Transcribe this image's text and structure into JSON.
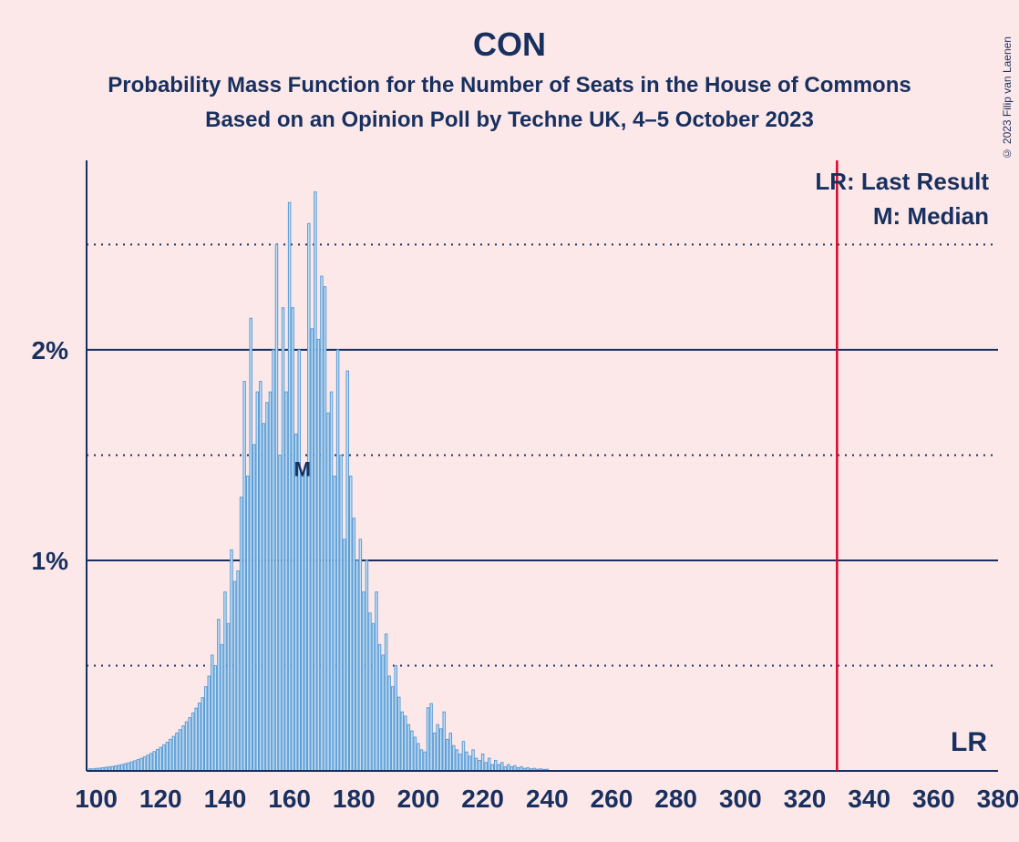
{
  "title": "CON",
  "subtitle1": "Probability Mass Function for the Number of Seats in the House of Commons",
  "subtitle2": "Based on an Opinion Poll by Techne UK, 4–5 October 2023",
  "copyright": "© 2023 Filip van Laenen",
  "legend": {
    "lr_full": "LR: Last Result",
    "m_full": "M: Median",
    "lr_short": "LR",
    "m_short": "M"
  },
  "chart": {
    "type": "bar-pmf",
    "background_color": "#fce8e8",
    "axis_color": "#18305f",
    "grid_major_color": "#18305f",
    "grid_minor_color": "#18305f",
    "bar_stroke_color": "#5a9bd5",
    "bar_fill_color": "#c5dff2",
    "lr_line_color": "#d90429",
    "text_color": "#18305f",
    "xlim": [
      97,
      380
    ],
    "ylim": [
      0,
      2.9
    ],
    "xtick_start": 100,
    "xtick_step": 20,
    "ytick_major": [
      1,
      2
    ],
    "ytick_minor": [
      0.5,
      1.5,
      2.5
    ],
    "y_label_suffix": "%",
    "last_result_x": 330,
    "median_x": 164,
    "axis_fontsize_y": 28,
    "axis_fontsize_x": 28,
    "legend_fontsize": 26,
    "label_m_fontsize": 22,
    "label_lr_fontsize": 30,
    "values": [
      {
        "x": 98,
        "y": 0.01
      },
      {
        "x": 99,
        "y": 0.01
      },
      {
        "x": 100,
        "y": 0.012
      },
      {
        "x": 101,
        "y": 0.013
      },
      {
        "x": 102,
        "y": 0.015
      },
      {
        "x": 103,
        "y": 0.017
      },
      {
        "x": 104,
        "y": 0.019
      },
      {
        "x": 105,
        "y": 0.021
      },
      {
        "x": 106,
        "y": 0.024
      },
      {
        "x": 107,
        "y": 0.027
      },
      {
        "x": 108,
        "y": 0.03
      },
      {
        "x": 109,
        "y": 0.034
      },
      {
        "x": 110,
        "y": 0.038
      },
      {
        "x": 111,
        "y": 0.043
      },
      {
        "x": 112,
        "y": 0.048
      },
      {
        "x": 113,
        "y": 0.054
      },
      {
        "x": 114,
        "y": 0.06
      },
      {
        "x": 115,
        "y": 0.067
      },
      {
        "x": 116,
        "y": 0.075
      },
      {
        "x": 117,
        "y": 0.083
      },
      {
        "x": 118,
        "y": 0.092
      },
      {
        "x": 119,
        "y": 0.102
      },
      {
        "x": 120,
        "y": 0.112
      },
      {
        "x": 121,
        "y": 0.124
      },
      {
        "x": 122,
        "y": 0.136
      },
      {
        "x": 123,
        "y": 0.15
      },
      {
        "x": 124,
        "y": 0.164
      },
      {
        "x": 125,
        "y": 0.18
      },
      {
        "x": 126,
        "y": 0.196
      },
      {
        "x": 127,
        "y": 0.214
      },
      {
        "x": 128,
        "y": 0.233
      },
      {
        "x": 129,
        "y": 0.253
      },
      {
        "x": 130,
        "y": 0.275
      },
      {
        "x": 131,
        "y": 0.298
      },
      {
        "x": 132,
        "y": 0.322
      },
      {
        "x": 133,
        "y": 0.348
      },
      {
        "x": 134,
        "y": 0.4
      },
      {
        "x": 135,
        "y": 0.45
      },
      {
        "x": 136,
        "y": 0.55
      },
      {
        "x": 137,
        "y": 0.5
      },
      {
        "x": 138,
        "y": 0.72
      },
      {
        "x": 139,
        "y": 0.6
      },
      {
        "x": 140,
        "y": 0.85
      },
      {
        "x": 141,
        "y": 0.7
      },
      {
        "x": 142,
        "y": 1.05
      },
      {
        "x": 143,
        "y": 0.9
      },
      {
        "x": 144,
        "y": 0.95
      },
      {
        "x": 145,
        "y": 1.3
      },
      {
        "x": 146,
        "y": 1.85
      },
      {
        "x": 147,
        "y": 1.4
      },
      {
        "x": 148,
        "y": 2.15
      },
      {
        "x": 149,
        "y": 1.55
      },
      {
        "x": 150,
        "y": 1.8
      },
      {
        "x": 151,
        "y": 1.85
      },
      {
        "x": 152,
        "y": 1.65
      },
      {
        "x": 153,
        "y": 1.75
      },
      {
        "x": 154,
        "y": 1.8
      },
      {
        "x": 155,
        "y": 2.0
      },
      {
        "x": 156,
        "y": 2.5
      },
      {
        "x": 157,
        "y": 1.5
      },
      {
        "x": 158,
        "y": 2.2
      },
      {
        "x": 159,
        "y": 1.8
      },
      {
        "x": 160,
        "y": 2.7
      },
      {
        "x": 161,
        "y": 2.2
      },
      {
        "x": 162,
        "y": 1.6
      },
      {
        "x": 163,
        "y": 2.0
      },
      {
        "x": 164,
        "y": 1.4
      },
      {
        "x": 165,
        "y": 1.45
      },
      {
        "x": 166,
        "y": 2.6
      },
      {
        "x": 167,
        "y": 2.1
      },
      {
        "x": 168,
        "y": 2.75
      },
      {
        "x": 169,
        "y": 2.05
      },
      {
        "x": 170,
        "y": 2.35
      },
      {
        "x": 171,
        "y": 2.3
      },
      {
        "x": 172,
        "y": 1.7
      },
      {
        "x": 173,
        "y": 1.8
      },
      {
        "x": 174,
        "y": 1.4
      },
      {
        "x": 175,
        "y": 2.0
      },
      {
        "x": 176,
        "y": 1.5
      },
      {
        "x": 177,
        "y": 1.1
      },
      {
        "x": 178,
        "y": 1.9
      },
      {
        "x": 179,
        "y": 1.4
      },
      {
        "x": 180,
        "y": 1.2
      },
      {
        "x": 181,
        "y": 1.0
      },
      {
        "x": 182,
        "y": 1.1
      },
      {
        "x": 183,
        "y": 0.85
      },
      {
        "x": 184,
        "y": 1.0
      },
      {
        "x": 185,
        "y": 0.75
      },
      {
        "x": 186,
        "y": 0.7
      },
      {
        "x": 187,
        "y": 0.85
      },
      {
        "x": 188,
        "y": 0.6
      },
      {
        "x": 189,
        "y": 0.55
      },
      {
        "x": 190,
        "y": 0.65
      },
      {
        "x": 191,
        "y": 0.45
      },
      {
        "x": 192,
        "y": 0.4
      },
      {
        "x": 193,
        "y": 0.5
      },
      {
        "x": 194,
        "y": 0.35
      },
      {
        "x": 195,
        "y": 0.28
      },
      {
        "x": 196,
        "y": 0.26
      },
      {
        "x": 197,
        "y": 0.22
      },
      {
        "x": 198,
        "y": 0.19
      },
      {
        "x": 199,
        "y": 0.16
      },
      {
        "x": 200,
        "y": 0.13
      },
      {
        "x": 201,
        "y": 0.1
      },
      {
        "x": 202,
        "y": 0.09
      },
      {
        "x": 203,
        "y": 0.3
      },
      {
        "x": 204,
        "y": 0.32
      },
      {
        "x": 205,
        "y": 0.18
      },
      {
        "x": 206,
        "y": 0.22
      },
      {
        "x": 207,
        "y": 0.2
      },
      {
        "x": 208,
        "y": 0.28
      },
      {
        "x": 209,
        "y": 0.15
      },
      {
        "x": 210,
        "y": 0.18
      },
      {
        "x": 211,
        "y": 0.12
      },
      {
        "x": 212,
        "y": 0.1
      },
      {
        "x": 213,
        "y": 0.08
      },
      {
        "x": 214,
        "y": 0.14
      },
      {
        "x": 215,
        "y": 0.09
      },
      {
        "x": 216,
        "y": 0.07
      },
      {
        "x": 217,
        "y": 0.1
      },
      {
        "x": 218,
        "y": 0.06
      },
      {
        "x": 219,
        "y": 0.05
      },
      {
        "x": 220,
        "y": 0.08
      },
      {
        "x": 221,
        "y": 0.04
      },
      {
        "x": 222,
        "y": 0.06
      },
      {
        "x": 223,
        "y": 0.03
      },
      {
        "x": 224,
        "y": 0.05
      },
      {
        "x": 225,
        "y": 0.03
      },
      {
        "x": 226,
        "y": 0.04
      },
      {
        "x": 227,
        "y": 0.02
      },
      {
        "x": 228,
        "y": 0.03
      },
      {
        "x": 229,
        "y": 0.02
      },
      {
        "x": 230,
        "y": 0.025
      },
      {
        "x": 231,
        "y": 0.015
      },
      {
        "x": 232,
        "y": 0.02
      },
      {
        "x": 233,
        "y": 0.012
      },
      {
        "x": 234,
        "y": 0.015
      },
      {
        "x": 235,
        "y": 0.01
      },
      {
        "x": 236,
        "y": 0.012
      },
      {
        "x": 237,
        "y": 0.008
      },
      {
        "x": 238,
        "y": 0.01
      },
      {
        "x": 239,
        "y": 0.007
      },
      {
        "x": 240,
        "y": 0.008
      }
    ]
  }
}
